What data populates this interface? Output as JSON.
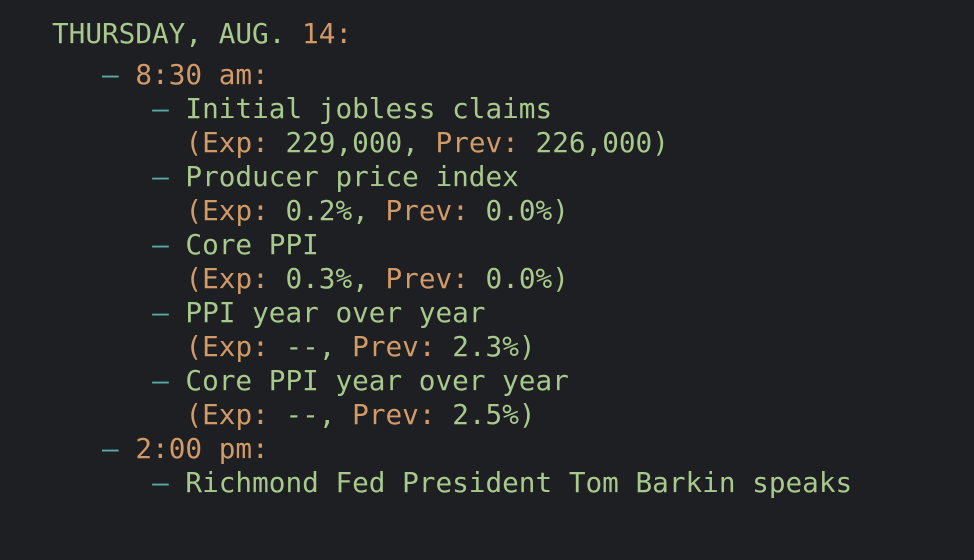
{
  "bullet": "–",
  "header": {
    "day": "THURSDAY, AUG.",
    "date": "14:"
  },
  "times": [
    {
      "time": "8:30 am:",
      "events": [
        {
          "name": "Initial jobless claims",
          "exp_label": "(Exp:",
          "exp": "229,000,",
          "prev_label": "Prev:",
          "prev": "226,000)"
        },
        {
          "name": "Producer price index",
          "exp_label": "(Exp:",
          "exp": "0.2%,",
          "prev_label": "Prev:",
          "prev": "0.0%)"
        },
        {
          "name": "Core PPI",
          "exp_label": "(Exp:",
          "exp": "0.3%,",
          "prev_label": "Prev:",
          "prev": "0.0%)"
        },
        {
          "name": "PPI year over year",
          "exp_label": "(Exp:",
          "exp": "--,",
          "prev_label": "Prev:",
          "prev": "2.3%)"
        },
        {
          "name": "Core PPI year over year",
          "exp_label": "(Exp:",
          "exp": "--,",
          "prev_label": "Prev:",
          "prev": "2.5%)"
        }
      ]
    },
    {
      "time": "2:00 pm:",
      "events": [
        {
          "name": "Richmond Fed President Tom Barkin speaks"
        }
      ]
    }
  ]
}
